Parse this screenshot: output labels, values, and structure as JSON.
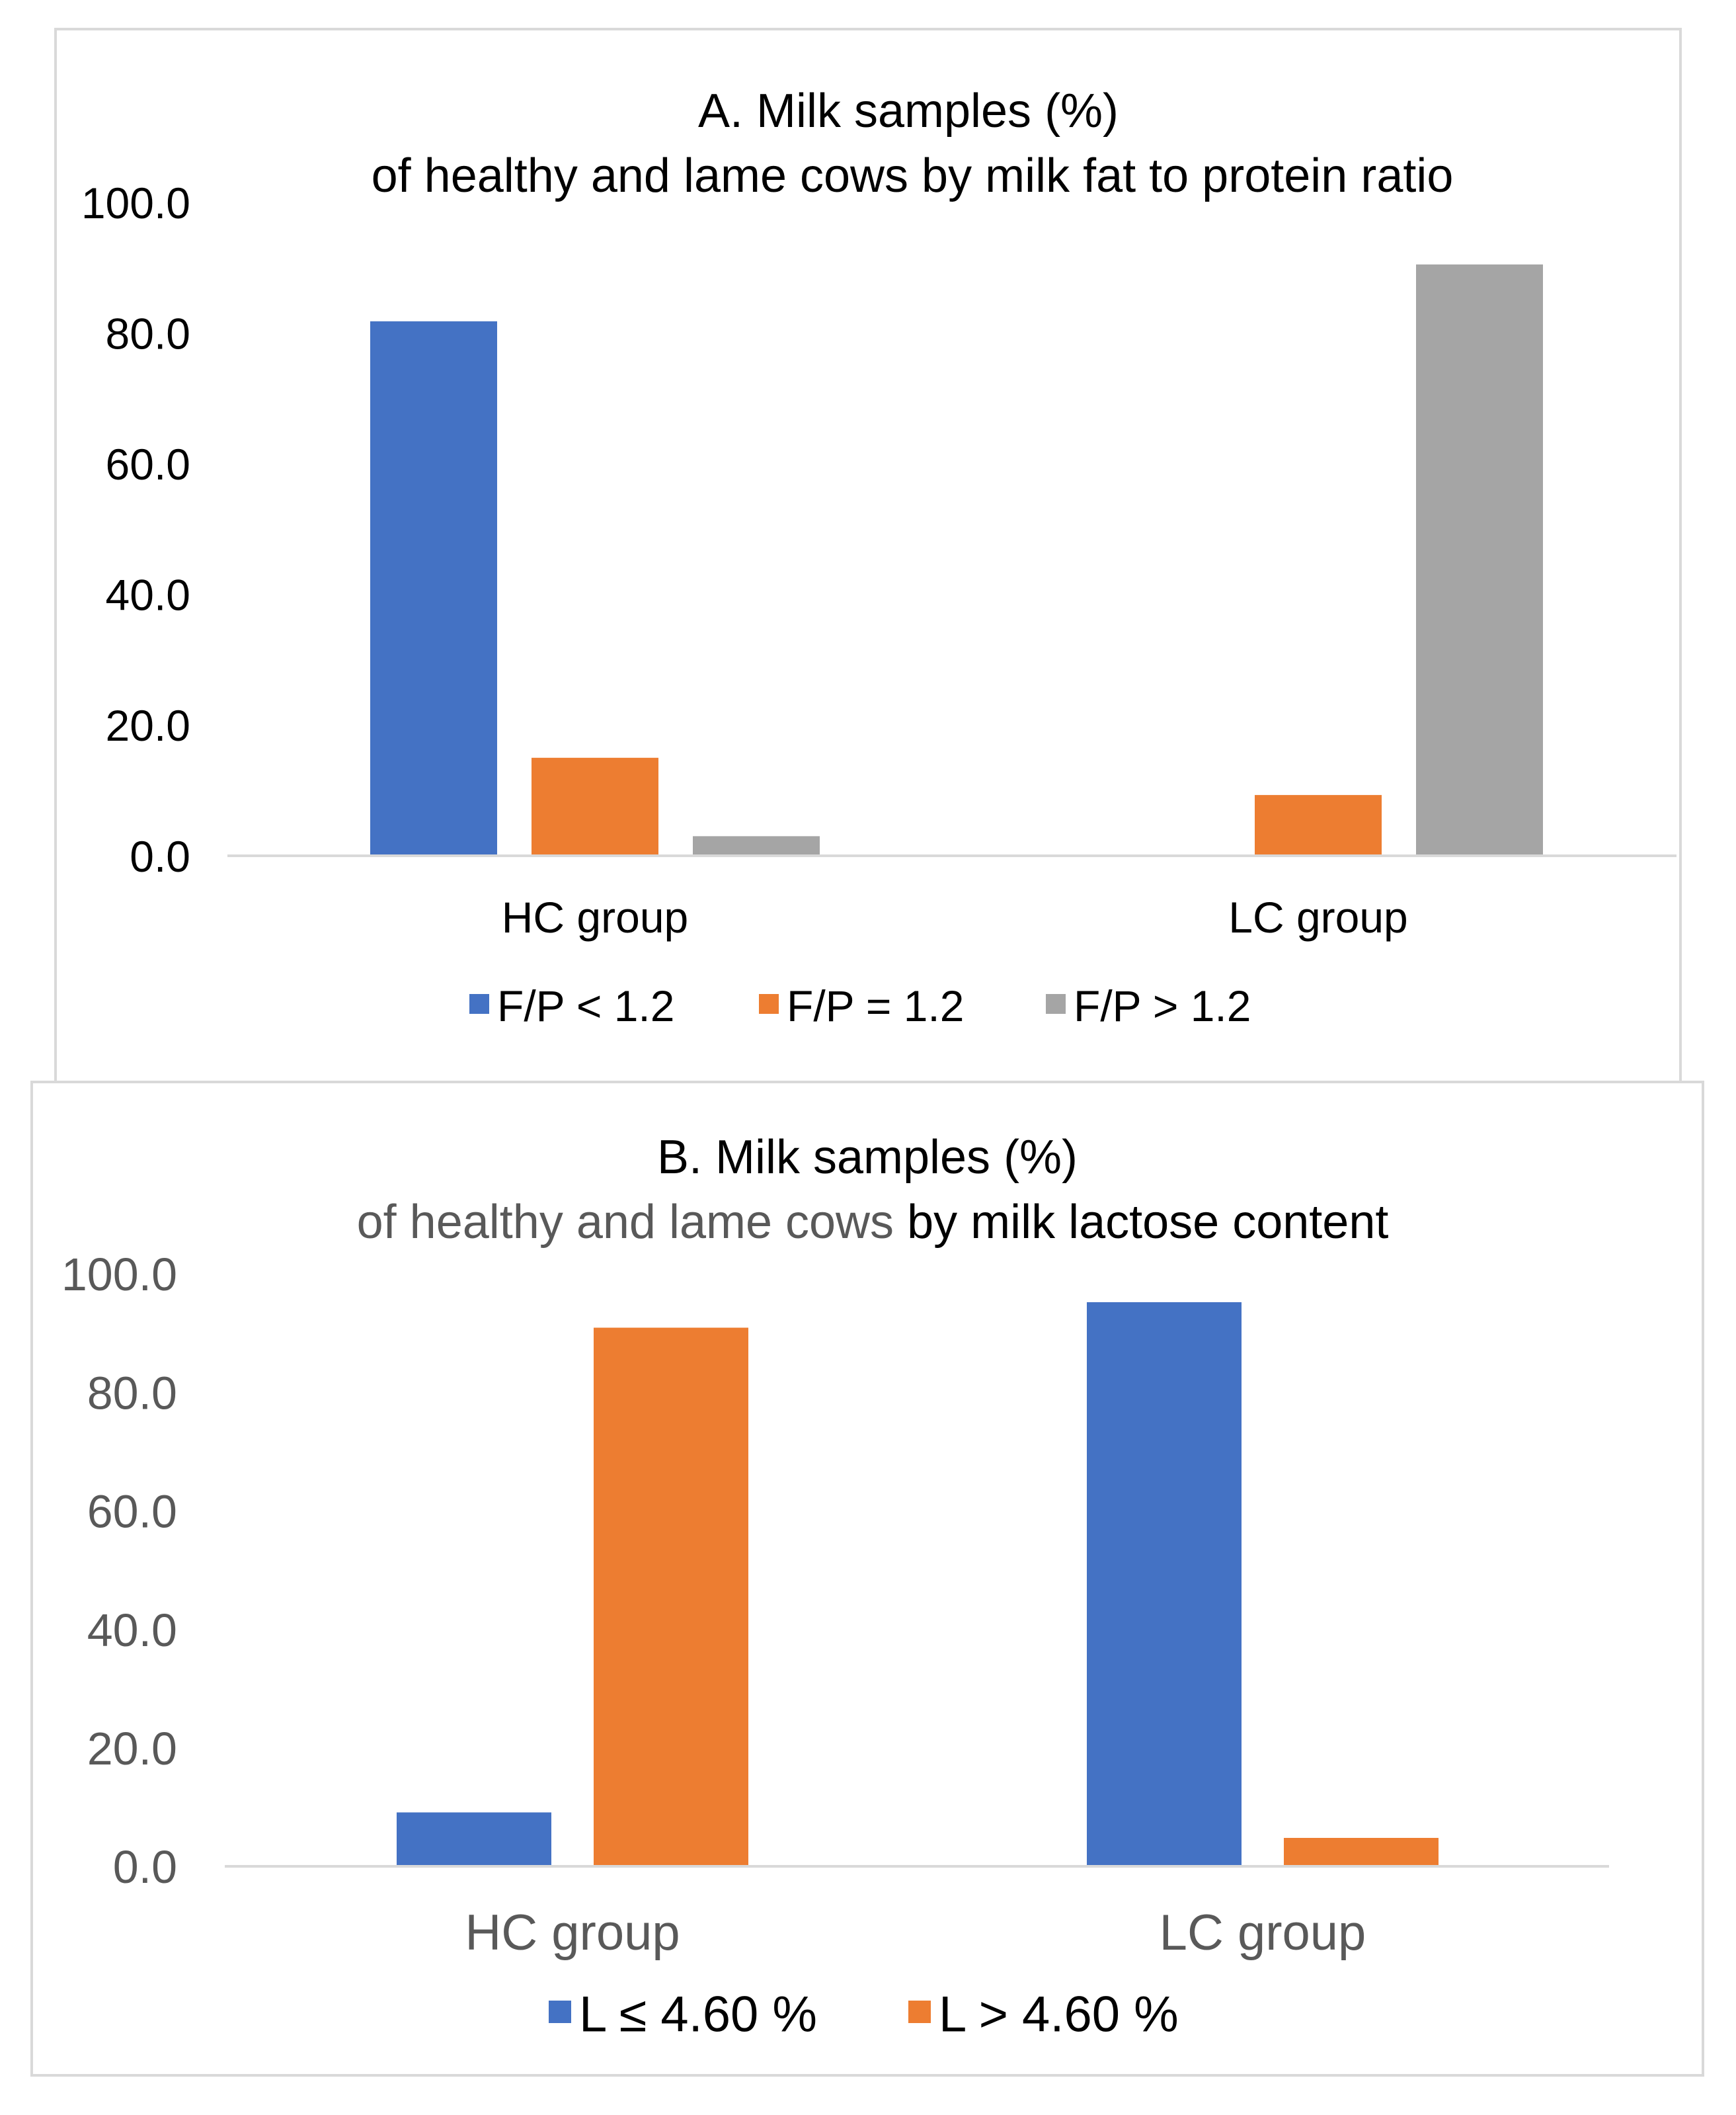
{
  "chart_data": [
    {
      "type": "bar",
      "title_line1": "A. Milk samples (%)",
      "title_line2": "of healthy and lame cows by milk fat to protein ratio",
      "categories": [
        "HC group",
        "LC group"
      ],
      "series": [
        {
          "name": "F/P < 1.2",
          "color": "#4472C4",
          "values": [
            81.8,
            0.0
          ]
        },
        {
          "name": "F/P = 1.2",
          "color": "#ED7D31",
          "values": [
            15.0,
            9.3
          ]
        },
        {
          "name": "F/P > 1.2",
          "color": "#A5A5A5",
          "values": [
            3.0,
            90.5
          ]
        }
      ],
      "ylim": [
        0,
        100
      ],
      "yticks": [
        "0.0",
        "20.0",
        "40.0",
        "60.0",
        "80.0",
        "100.0"
      ],
      "legend_position": "bottom",
      "grid": false
    },
    {
      "type": "bar",
      "title_line1": "B. Milk samples (%)",
      "title_line2_gray": "of healthy and lame cows",
      "title_line2_dark": " by milk lactose content",
      "categories": [
        "HC group",
        "LC group"
      ],
      "series": [
        {
          "name": "L ≤ 4.60 %",
          "color": "#4472C4",
          "values": [
            9.1,
            95.2
          ]
        },
        {
          "name": "L > 4.60 %",
          "color": "#ED7D31",
          "values": [
            90.9,
            4.8
          ]
        }
      ],
      "ylim": [
        0,
        100
      ],
      "yticks": [
        "0.0",
        "20.0",
        "40.0",
        "60.0",
        "80.0",
        "100.0"
      ],
      "legend_position": "bottom",
      "grid": false
    }
  ]
}
